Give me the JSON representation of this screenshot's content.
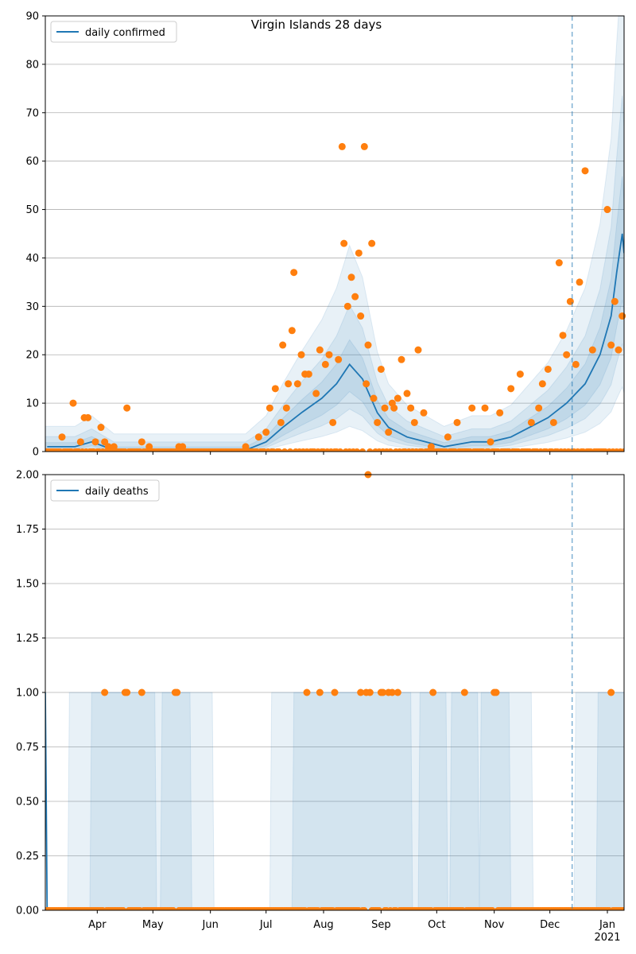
{
  "figure": {
    "title": "Virgin Islands 28 days"
  },
  "colors": {
    "line": "#1f77b4",
    "points": "#ff7f0e",
    "band": "#1f77b4",
    "grid": "#b0b0b0",
    "axis": "#000000"
  },
  "chart_data": [
    {
      "type": "line",
      "name": "cases",
      "legend": "daily confirmed",
      "ylim": [
        0,
        90
      ],
      "yticks": [
        0,
        10,
        20,
        30,
        40,
        50,
        60,
        70,
        80,
        90
      ],
      "ytick_labels": [
        "0",
        "10",
        "20",
        "30",
        "40",
        "50",
        "60",
        "70",
        "80",
        "90"
      ],
      "grid": "horizontal",
      "legend_position": "top-left",
      "series_line": {
        "name": "daily confirmed",
        "x": [
          "2020-03-05",
          "2020-03-20",
          "2020-03-29",
          "2020-04-10",
          "2020-06-20",
          "2020-07-01",
          "2020-07-10",
          "2020-07-20",
          "2020-07-31",
          "2020-08-08",
          "2020-08-15",
          "2020-08-22",
          "2020-08-30",
          "2020-09-05",
          "2020-09-15",
          "2020-09-25",
          "2020-10-05",
          "2020-10-20",
          "2020-10-30",
          "2020-11-10",
          "2020-11-20",
          "2020-11-30",
          "2020-12-10",
          "2020-12-20",
          "2020-12-28",
          "2021-01-03",
          "2021-01-06",
          "2021-01-09",
          "2021-01-10"
        ],
        "y": [
          1,
          1,
          2,
          0.3,
          0.3,
          2,
          5,
          8,
          11,
          14,
          18,
          15,
          8,
          5,
          3,
          2,
          1,
          2,
          2,
          3,
          5,
          7,
          10,
          14,
          20,
          28,
          37,
          45,
          41
        ]
      },
      "points": {
        "x": [
          "2020-03-13",
          "2020-03-19",
          "2020-03-23",
          "2020-03-25",
          "2020-03-27",
          "2020-03-31",
          "2020-04-03",
          "2020-04-05",
          "2020-04-07",
          "2020-04-10",
          "2020-04-17",
          "2020-04-25",
          "2020-04-29",
          "2020-05-15",
          "2020-05-17",
          "2020-06-20",
          "2020-06-27",
          "2020-07-01",
          "2020-07-03",
          "2020-07-06",
          "2020-07-09",
          "2020-07-10",
          "2020-07-12",
          "2020-07-13",
          "2020-07-15",
          "2020-07-16",
          "2020-07-18",
          "2020-07-20",
          "2020-07-22",
          "2020-07-24",
          "2020-07-28",
          "2020-07-30",
          "2020-08-02",
          "2020-08-04",
          "2020-08-06",
          "2020-08-09",
          "2020-08-11",
          "2020-08-12",
          "2020-08-14",
          "2020-08-16",
          "2020-08-18",
          "2020-08-20",
          "2020-08-21",
          "2020-08-23",
          "2020-08-24",
          "2020-08-25",
          "2020-08-27",
          "2020-08-28",
          "2020-08-30",
          "2020-09-01",
          "2020-09-03",
          "2020-09-05",
          "2020-09-07",
          "2020-09-08",
          "2020-09-10",
          "2020-09-12",
          "2020-09-15",
          "2020-09-17",
          "2020-09-19",
          "2020-09-21",
          "2020-09-24",
          "2020-09-28",
          "2020-10-07",
          "2020-10-12",
          "2020-10-20",
          "2020-10-27",
          "2020-10-30",
          "2020-11-04",
          "2020-11-10",
          "2020-11-15",
          "2020-11-21",
          "2020-11-25",
          "2020-11-27",
          "2020-11-30",
          "2020-12-03",
          "2020-12-06",
          "2020-12-08",
          "2020-12-10",
          "2020-12-12",
          "2020-12-15",
          "2020-12-17",
          "2020-12-20",
          "2020-12-24",
          "2021-01-01",
          "2021-01-03",
          "2021-01-05",
          "2021-01-07",
          "2021-01-09"
        ],
        "y": [
          3,
          10,
          2,
          7,
          7,
          2,
          5,
          2,
          1,
          1,
          9,
          2,
          1,
          1,
          1,
          1,
          3,
          4,
          9,
          13,
          6,
          22,
          9,
          14,
          25,
          37,
          14,
          20,
          16,
          16,
          12,
          21,
          18,
          20,
          6,
          19,
          63,
          43,
          30,
          36,
          32,
          41,
          28,
          63,
          14,
          22,
          43,
          11,
          6,
          17,
          9,
          4,
          10,
          9,
          11,
          19,
          12,
          9,
          6,
          21,
          8,
          1,
          3,
          6,
          9,
          9,
          2,
          8,
          13,
          16,
          6,
          9,
          14,
          17,
          6,
          39,
          24,
          20,
          31,
          18,
          35,
          58,
          21,
          50,
          22,
          31,
          21,
          28
        ]
      },
      "vline_date": "2020-12-13"
    },
    {
      "type": "scatter",
      "name": "deaths",
      "legend": "daily deaths",
      "ylim": [
        0,
        2
      ],
      "yticks": [
        0,
        0.25,
        0.5,
        0.75,
        1.0,
        1.25,
        1.5,
        1.75,
        2.0
      ],
      "ytick_labels": [
        "0.00",
        "0.25",
        "0.50",
        "0.75",
        "1.00",
        "1.25",
        "1.50",
        "1.75",
        "2.00"
      ],
      "grid": "horizontal",
      "legend_position": "top-left",
      "series_line": {
        "name": "daily deaths",
        "x": [
          "2020-03-04",
          "2020-03-05",
          "2021-01-10"
        ],
        "y": [
          1.0,
          0.0,
          0.0
        ]
      },
      "points": {
        "x": [
          "2020-04-05",
          "2020-04-16",
          "2020-04-17",
          "2020-04-25",
          "2020-05-13",
          "2020-05-14",
          "2020-07-23",
          "2020-07-30",
          "2020-08-07",
          "2020-08-21",
          "2020-08-24",
          "2020-08-25",
          "2020-08-26",
          "2020-09-01",
          "2020-09-02",
          "2020-09-05",
          "2020-09-07",
          "2020-09-10",
          "2020-09-29",
          "2020-10-16",
          "2020-11-01",
          "2020-11-02",
          "2021-01-03"
        ],
        "y": [
          1,
          1,
          1,
          1,
          1,
          1,
          1,
          1,
          1,
          1,
          1,
          2,
          1,
          1,
          1,
          1,
          1,
          1,
          1,
          1,
          1,
          1,
          1
        ]
      },
      "vline_date": "2020-12-13"
    }
  ],
  "xaxis": {
    "start": "2020-03-04",
    "end": "2021-01-10",
    "ticks": [
      "2020-04-01",
      "2020-05-01",
      "2020-06-01",
      "2020-07-01",
      "2020-08-01",
      "2020-09-01",
      "2020-10-01",
      "2020-11-01",
      "2020-12-01",
      "2021-01-01"
    ],
    "tick_labels": [
      "Apr",
      "May",
      "Jun",
      "Jul",
      "Aug",
      "Sep",
      "Oct",
      "Nov",
      "Dec",
      "Jan"
    ],
    "year_label": "2021"
  }
}
